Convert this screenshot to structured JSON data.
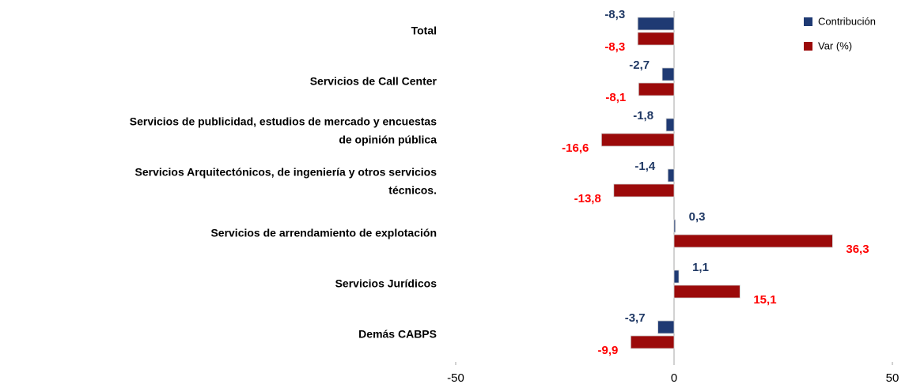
{
  "chart_data": {
    "type": "barh",
    "categories": [
      "Total",
      "Servicios de Call Center",
      "Servicios de publicidad, estudios de mercado y encuestas\nde opinión pública",
      "Servicios Arquitectónicos, de ingeniería y otros servicios\ntécnicos.",
      "Servicios de arrendamiento de explotación",
      "Servicios Jurídicos",
      "Demás CABPS"
    ],
    "series": [
      {
        "name": "Contribución",
        "color": "#1f3a73",
        "label_color": "#1f3864",
        "values": [
          -8.3,
          -2.7,
          -1.8,
          -1.4,
          0.3,
          1.1,
          -3.7
        ],
        "value_labels": [
          "-8,3",
          "-2,7",
          "-1,8",
          "-1,4",
          "0,3",
          "1,1",
          "-3,7"
        ]
      },
      {
        "name": "Var (%)",
        "color": "#9b0a0a",
        "label_color": "#ff0000",
        "values": [
          -8.3,
          -8.1,
          -16.6,
          -13.8,
          36.3,
          15.1,
          -9.9
        ],
        "value_labels": [
          "-8,3",
          "-8,1",
          "-16,6",
          "-13,8",
          "36,3",
          "15,1",
          "-9,9"
        ]
      }
    ],
    "xlim": [
      -50,
      50
    ],
    "xticks": [
      -50,
      0,
      50
    ],
    "legend": "top-right"
  }
}
